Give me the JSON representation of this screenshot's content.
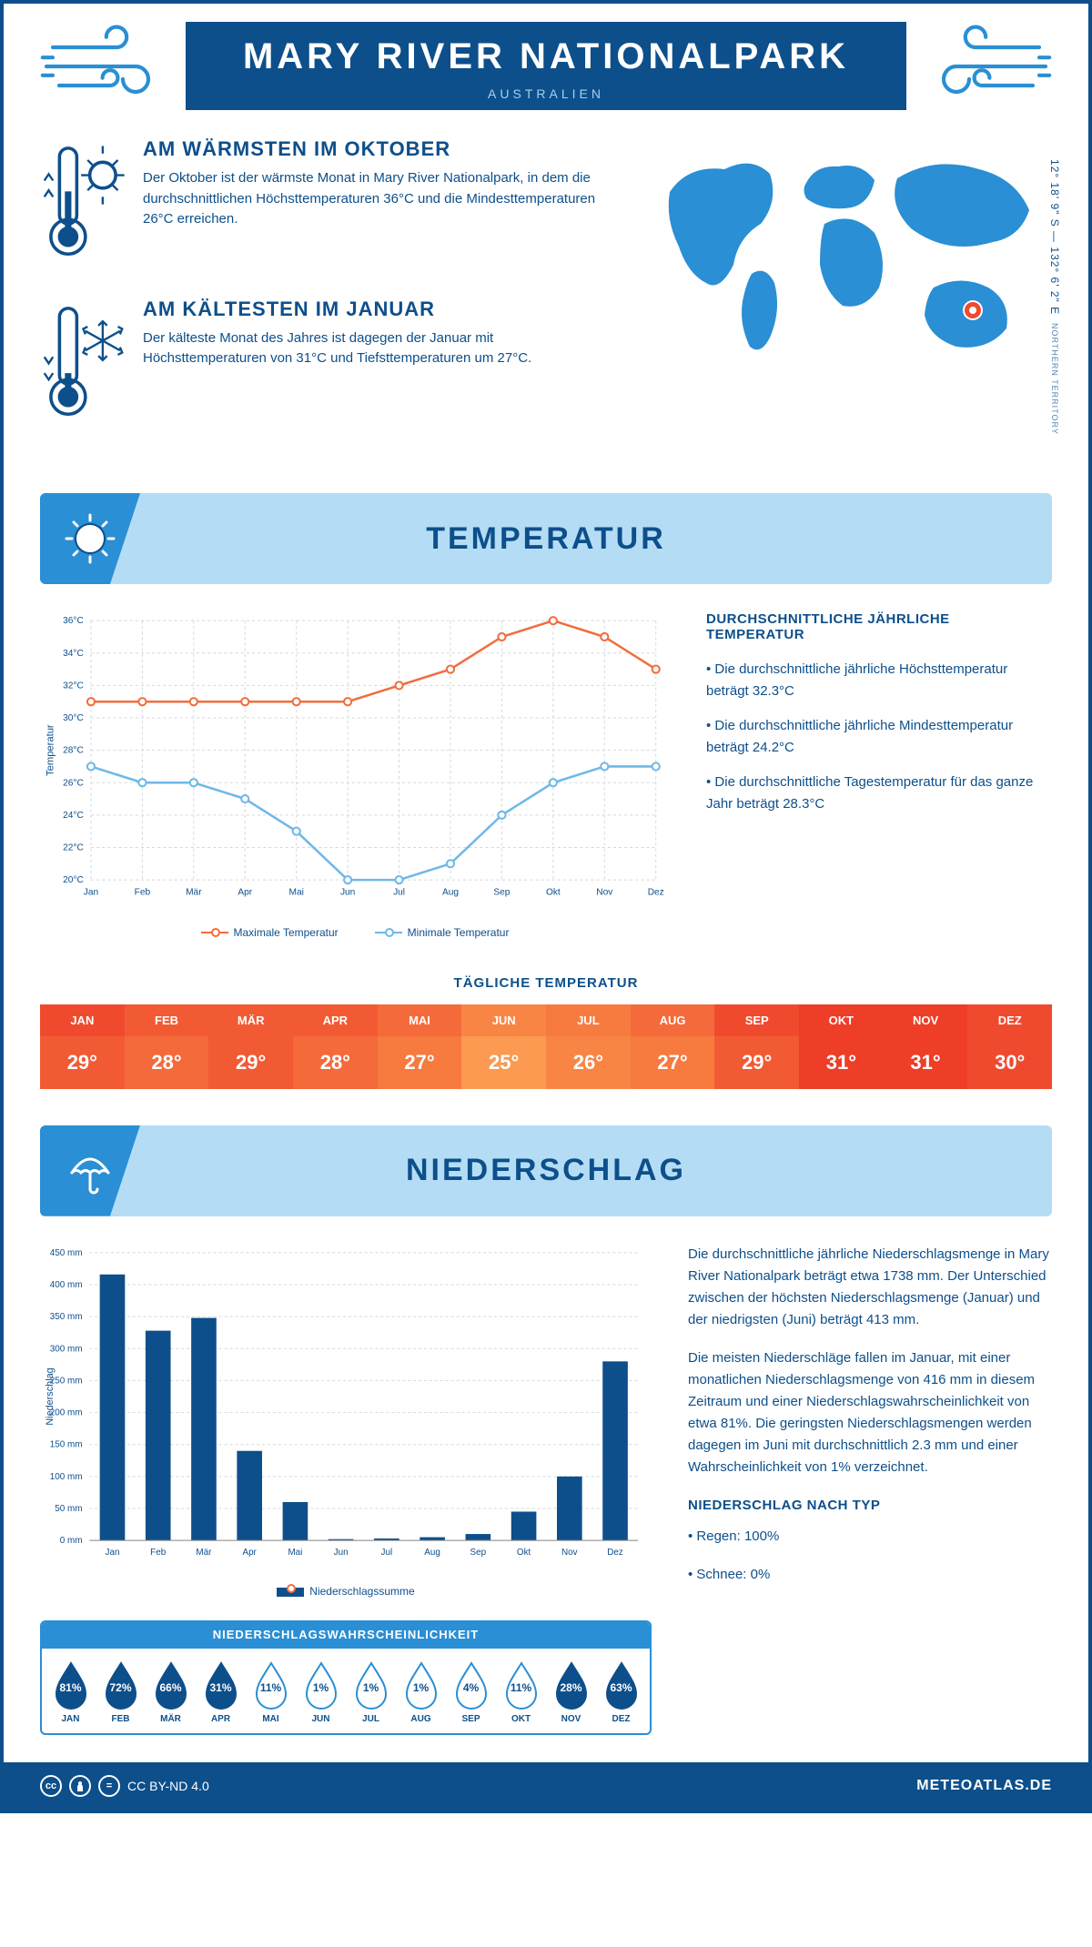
{
  "header": {
    "title": "MARY RIVER NATIONALPARK",
    "subtitle": "AUSTRALIEN",
    "coords": "12° 18' 9\" S — 132° 6' 2\" E",
    "coords_sub": "NORTHERN TERRITORY"
  },
  "colors": {
    "primary_dark": "#0d4f8b",
    "primary_mid": "#2a8fd4",
    "primary_light": "#b4ddf5",
    "max_line": "#f26d3d",
    "min_line": "#6fb8e8",
    "grid": "#d3d8de",
    "marker_red": "#f04a2e"
  },
  "facts": {
    "warm": {
      "title": "AM WÄRMSTEN IM OKTOBER",
      "text": "Der Oktober ist der wärmste Monat in Mary River Nationalpark, in dem die durchschnittlichen Höchsttemperaturen 36°C und die Mindesttemperaturen 26°C erreichen."
    },
    "cold": {
      "title": "AM KÄLTESTEN IM JANUAR",
      "text": "Der kälteste Monat des Jahres ist dagegen der Januar mit Höchsttemperaturen von 31°C und Tiefsttemperaturen um 27°C."
    }
  },
  "temperature": {
    "section_title": "TEMPERATUR",
    "side_title": "DURCHSCHNITTLICHE JÄHRLICHE TEMPERATUR",
    "side_points": [
      "• Die durchschnittliche jährliche Höchsttemperatur beträgt 32.3°C",
      "• Die durchschnittliche jährliche Mindesttemperatur beträgt 24.2°C",
      "• Die durchschnittliche Tagestemperatur für das ganze Jahr beträgt 28.3°C"
    ],
    "chart": {
      "months": [
        "Jan",
        "Feb",
        "Mär",
        "Apr",
        "Mai",
        "Jun",
        "Jul",
        "Aug",
        "Sep",
        "Okt",
        "Nov",
        "Dez"
      ],
      "max": [
        31,
        31,
        31,
        31,
        31,
        31,
        32,
        33,
        35,
        36,
        35,
        33
      ],
      "min": [
        27,
        26,
        26,
        25,
        23,
        20,
        20,
        21,
        24,
        26,
        27,
        27
      ],
      "ylim": [
        20,
        36
      ],
      "ytick_step": 2,
      "y_label": "Temperatur",
      "legend_max": "Maximale Temperatur",
      "legend_min": "Minimale Temperatur"
    },
    "daily": {
      "title": "TÄGLICHE TEMPERATUR",
      "months": [
        "JAN",
        "FEB",
        "MÄR",
        "APR",
        "MAI",
        "JUN",
        "JUL",
        "AUG",
        "SEP",
        "OKT",
        "NOV",
        "DEZ"
      ],
      "values": [
        "29°",
        "28°",
        "29°",
        "28°",
        "27°",
        "25°",
        "26°",
        "27°",
        "29°",
        "31°",
        "31°",
        "30°"
      ],
      "header_colors": [
        "#f04a2e",
        "#f25a34",
        "#f25a34",
        "#f25a34",
        "#f46a3a",
        "#f98544",
        "#f77a3f",
        "#f46a3a",
        "#f04a2e",
        "#ee3e27",
        "#ee3e27",
        "#f04a2e"
      ],
      "value_colors": [
        "#f25a34",
        "#f46a3a",
        "#f25a34",
        "#f46a3a",
        "#f77a3f",
        "#fb9a50",
        "#f98544",
        "#f77a3f",
        "#f25a34",
        "#ee3e27",
        "#ee3e27",
        "#f04a2e"
      ]
    }
  },
  "precip": {
    "section_title": "NIEDERSCHLAG",
    "chart": {
      "months": [
        "Jan",
        "Feb",
        "Mär",
        "Apr",
        "Mai",
        "Jun",
        "Jul",
        "Aug",
        "Sep",
        "Okt",
        "Nov",
        "Dez"
      ],
      "values": [
        416,
        328,
        348,
        140,
        60,
        2,
        3,
        5,
        10,
        45,
        100,
        280
      ],
      "ylim": [
        0,
        450
      ],
      "ytick_step": 50,
      "y_label": "Niederschlag",
      "legend": "Niederschlagssumme",
      "bar_color": "#0d4f8b"
    },
    "side_paras": [
      "Die durchschnittliche jährliche Niederschlagsmenge in Mary River Nationalpark beträgt etwa 1738 mm. Der Unterschied zwischen der höchsten Niederschlagsmenge (Januar) und der niedrigsten (Juni) beträgt 413 mm.",
      "Die meisten Niederschläge fallen im Januar, mit einer monatlichen Niederschlagsmenge von 416 mm in diesem Zeitraum und einer Niederschlagswahrscheinlichkeit von etwa 81%. Die geringsten Niederschlagsmengen werden dagegen im Juni mit durchschnittlich 2.3 mm und einer Wahrscheinlichkeit von 1% verzeichnet."
    ],
    "type_title": "NIEDERSCHLAG NACH TYP",
    "types": [
      "• Regen: 100%",
      "• Schnee: 0%"
    ],
    "prob": {
      "title": "NIEDERSCHLAGSWAHRSCHEINLICHKEIT",
      "months": [
        "JAN",
        "FEB",
        "MÄR",
        "APR",
        "MAI",
        "JUN",
        "JUL",
        "AUG",
        "SEP",
        "OKT",
        "NOV",
        "DEZ"
      ],
      "values": [
        "81%",
        "72%",
        "66%",
        "31%",
        "11%",
        "1%",
        "1%",
        "1%",
        "4%",
        "11%",
        "28%",
        "63%"
      ],
      "filled": [
        true,
        true,
        true,
        true,
        false,
        false,
        false,
        false,
        false,
        false,
        true,
        true
      ]
    }
  },
  "footer": {
    "license": "CC BY-ND 4.0",
    "brand": "METEOATLAS.DE"
  }
}
